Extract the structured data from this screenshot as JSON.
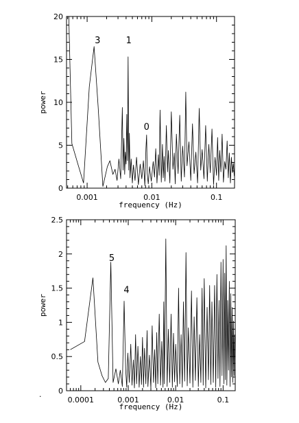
{
  "chart_data": [
    {
      "type": "line",
      "xlabel": "frequency (Hz)",
      "ylabel": "power",
      "xscale": "log",
      "xlim": [
        0.00048,
        0.19
      ],
      "ylim": [
        0,
        20
      ],
      "xticks": [
        {
          "value": 0.001,
          "label": "0.001"
        },
        {
          "value": 0.01,
          "label": "0.01"
        },
        {
          "value": 0.1,
          "label": "0.1"
        }
      ],
      "yticks": [
        {
          "value": 0,
          "label": "0"
        },
        {
          "value": 5,
          "label": "5"
        },
        {
          "value": 10,
          "label": "10"
        },
        {
          "value": 15,
          "label": "15"
        },
        {
          "value": 20,
          "label": "20"
        }
      ],
      "annotations": [
        {
          "text": "3",
          "x": 0.00145,
          "y": 16.9
        },
        {
          "text": "1",
          "x": 0.0044,
          "y": 16.9
        },
        {
          "text": "0",
          "x": 0.0083,
          "y": 6.8
        }
      ],
      "series": [
        {
          "x": [
            0.00052,
            0.00058,
            0.00072,
            0.00088,
            0.00108,
            0.00128,
            0.00148,
            0.00175,
            0.00205,
            0.00225,
            0.0025,
            0.0027,
            0.0029,
            0.0031,
            0.0033,
            0.0035,
            0.0036,
            0.0037,
            0.0038,
            0.0039,
            0.004,
            0.0041,
            0.0042,
            0.0043,
            0.0044,
            0.0045,
            0.0046,
            0.0048,
            0.005,
            0.0052,
            0.0055,
            0.0058,
            0.0062,
            0.0066,
            0.007,
            0.0074,
            0.0078,
            0.0081,
            0.0083,
            0.0085,
            0.0088,
            0.0092,
            0.0098,
            0.0105,
            0.011,
            0.0115,
            0.012,
            0.0126,
            0.013,
            0.0134,
            0.014,
            0.0146,
            0.015,
            0.0155,
            0.016,
            0.0168,
            0.0175,
            0.018,
            0.019,
            0.02,
            0.0212,
            0.0222,
            0.023,
            0.024,
            0.0255,
            0.027,
            0.0285,
            0.03,
            0.032,
            0.0335,
            0.035,
            0.0375,
            0.04,
            0.0425,
            0.045,
            0.048,
            0.051,
            0.054,
            0.057,
            0.06,
            0.064,
            0.068,
            0.072,
            0.076,
            0.08,
            0.085,
            0.09,
            0.095,
            0.1,
            0.104,
            0.108,
            0.112,
            0.117,
            0.122,
            0.128,
            0.134,
            0.14,
            0.146,
            0.152,
            0.158,
            0.164,
            0.17,
            0.176,
            0.182,
            0.188
          ],
          "y": [
            20,
            5.2,
            2.8,
            0.6,
            11.8,
            16.5,
            9.5,
            0.2,
            2.5,
            3.2,
            1.6,
            2.2,
            0.9,
            3.4,
            1.1,
            9.4,
            2.1,
            5.8,
            1.6,
            4.2,
            2.8,
            8.6,
            3.2,
            15.3,
            2.1,
            6.4,
            1.2,
            3.4,
            0.6,
            2.7,
            0.9,
            3.6,
            0.4,
            2.8,
            1.1,
            3.2,
            0.3,
            4.6,
            6.2,
            1.7,
            0.5,
            2.5,
            0.8,
            3.1,
            1.3,
            4.6,
            0.6,
            3.9,
            1.5,
            9.1,
            0.7,
            5.1,
            1.2,
            3.7,
            0.8,
            7.3,
            1.9,
            4.4,
            0.6,
            8.9,
            2.2,
            4.1,
            0.5,
            6.3,
            1.7,
            8.5,
            0.8,
            4.9,
            1.3,
            11.2,
            2.6,
            5.4,
            0.9,
            7.5,
            1.7,
            4.2,
            0.6,
            9.3,
            2.1,
            4.5,
            1.1,
            7.3,
            0.8,
            5.1,
            1.8,
            6.9,
            0.4,
            3.6,
            1.5,
            5.9,
            0.9,
            4.4,
            1.9,
            6.3,
            0.7,
            3.1,
            2.2,
            5.5,
            1.2,
            4.1,
            0.6,
            3.6,
            1.8,
            2.9,
            1.4
          ]
        }
      ]
    },
    {
      "type": "line",
      "xlabel": "frequency (Hz)",
      "ylabel": "power",
      "xscale": "log",
      "xlim": [
        5e-05,
        0.18
      ],
      "ylim": [
        0,
        2.5
      ],
      "xticks": [
        {
          "value": 0.0001,
          "label": "0.0001"
        },
        {
          "value": 0.001,
          "label": "0.001"
        },
        {
          "value": 0.01,
          "label": "0.01"
        },
        {
          "value": 0.1,
          "label": "0.1"
        }
      ],
      "yticks": [
        {
          "value": 0,
          "label": "0"
        },
        {
          "value": 0.5,
          "label": "0.5"
        },
        {
          "value": 1,
          "label": "1"
        },
        {
          "value": 1.5,
          "label": "1.5"
        },
        {
          "value": 2,
          "label": "2"
        },
        {
          "value": 2.5,
          "label": "2.5"
        }
      ],
      "annotations": [
        {
          "text": "5",
          "x": 0.00045,
          "y": 1.9
        },
        {
          "text": "4",
          "x": 0.00092,
          "y": 1.43
        }
      ],
      "series": [
        {
          "x": [
            6e-05,
            0.00012,
            0.00018,
            0.00023,
            0.00028,
            0.00033,
            0.00038,
            0.00043,
            0.00048,
            0.00055,
            0.00062,
            0.00068,
            0.00075,
            0.00082,
            0.00088,
            0.00093,
            0.00098,
            0.00105,
            0.00113,
            0.0012,
            0.00128,
            0.00135,
            0.00143,
            0.0015,
            0.0016,
            0.0017,
            0.0018,
            0.0019,
            0.002,
            0.0021,
            0.0022,
            0.00235,
            0.0025,
            0.0026,
            0.0028,
            0.003,
            0.0032,
            0.0034,
            0.0036,
            0.0038,
            0.004,
            0.0042,
            0.0045,
            0.0048,
            0.0051,
            0.0054,
            0.0056,
            0.0058,
            0.0062,
            0.0066,
            0.007,
            0.0075,
            0.008,
            0.0085,
            0.009,
            0.0095,
            0.01,
            0.0108,
            0.0115,
            0.0122,
            0.013,
            0.0138,
            0.0146,
            0.0155,
            0.0165,
            0.0175,
            0.0185,
            0.02,
            0.0215,
            0.023,
            0.0245,
            0.026,
            0.028,
            0.03,
            0.032,
            0.034,
            0.036,
            0.038,
            0.04,
            0.043,
            0.046,
            0.049,
            0.052,
            0.055,
            0.058,
            0.062,
            0.066,
            0.07,
            0.074,
            0.078,
            0.082,
            0.086,
            0.09,
            0.095,
            0.1,
            0.104,
            0.108,
            0.112,
            0.116,
            0.12,
            0.125,
            0.13,
            0.135,
            0.14,
            0.145,
            0.15,
            0.155,
            0.16,
            0.165,
            0.17,
            0.175
          ],
          "y": [
            0.6,
            0.72,
            1.65,
            0.42,
            0.22,
            0.12,
            0.18,
            1.88,
            0.12,
            0.32,
            0.1,
            0.3,
            0.06,
            1.31,
            0.32,
            0.05,
            0.55,
            0.12,
            0.68,
            0.08,
            0.45,
            0.04,
            0.82,
            0.1,
            0.65,
            0.05,
            0.5,
            0.09,
            0.78,
            0.05,
            0.62,
            0.1,
            0.88,
            0.06,
            0.52,
            0.03,
            0.95,
            0.12,
            0.6,
            0.04,
            0.85,
            0.1,
            1.12,
            0.08,
            0.72,
            0.05,
            1.3,
            0.1,
            2.22,
            0.06,
            0.9,
            0.12,
            1.12,
            0.05,
            0.84,
            0.13,
            0.68,
            0.06,
            1.5,
            0.1,
            0.82,
            0.05,
            1.3,
            0.14,
            2.02,
            0.07,
            0.92,
            0.11,
            1.46,
            0.05,
            1.08,
            0.15,
            1.36,
            0.06,
            0.82,
            0.12,
            1.5,
            0.08,
            1.64,
            0.04,
            1.22,
            0.16,
            1.54,
            0.09,
            1.3,
            0.12,
            1.54,
            0.05,
            1.7,
            0.18,
            1.32,
            0.06,
            1.88,
            0.22,
            1.92,
            0.1,
            1.72,
            0.16,
            2.12,
            0.08,
            1.32,
            0.3,
            1.6,
            0.06,
            1.42,
            0.2,
            1.22,
            0.12,
            1.02,
            0.22,
            0.82
          ]
        }
      ]
    }
  ]
}
